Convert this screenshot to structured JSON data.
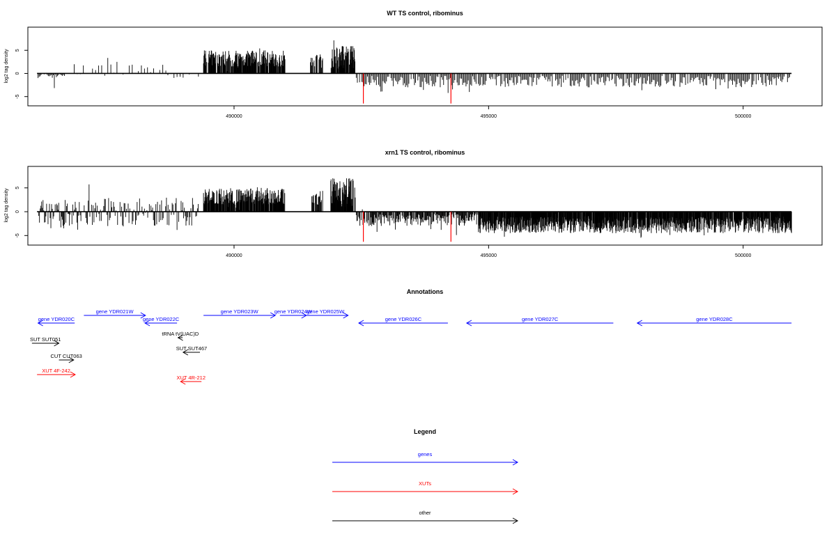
{
  "panels": [
    {
      "title": "WT TS control, ribominus",
      "ylabel": "log2 tag density",
      "yticks": [
        -5,
        0,
        5
      ],
      "xticks": [
        490000,
        495000,
        500000
      ],
      "xlim": [
        485950,
        501550
      ],
      "ylim": [
        -7.0,
        10.0
      ],
      "red_lines": [
        {
          "x": 492540,
          "y": -6.5
        },
        {
          "x": 494260,
          "y": -6.5
        }
      ],
      "regions": [
        {
          "x0": 486150,
          "x1": 486700,
          "lo": -1.0,
          "hi": 0.2,
          "every": 20,
          "dmin": -5.0,
          "dmax": 0
        },
        {
          "x0": 486800,
          "x1": 488700,
          "lo": -0.5,
          "hi": 2.0,
          "every": 60,
          "dmin": -2.5,
          "dmax": 4.0
        },
        {
          "x0": 488700,
          "x1": 489300,
          "lo": -1.0,
          "hi": 0.2,
          "every": 60,
          "dmin": -2.5,
          "dmax": 0.5
        },
        {
          "x0": 489400,
          "x1": 491000,
          "lo": 1.5,
          "hi": 5.0,
          "every": 8,
          "dmin": 0,
          "dmax": 5.5
        },
        {
          "x0": 491500,
          "x1": 491750,
          "lo": 1.0,
          "hi": 4.5,
          "every": 12,
          "dmin": 0,
          "dmax": 5.0
        },
        {
          "x0": 491900,
          "x1": 492380,
          "lo": 1.0,
          "hi": 6.0,
          "every": 6,
          "dmin": 0,
          "dmax": 8.0
        },
        {
          "x0": 492400,
          "x1": 500950,
          "lo": -3.0,
          "hi": -0.5,
          "every": 22,
          "dmin": -4.5,
          "dmax": 0
        }
      ]
    },
    {
      "title": "xrn1 TS control, ribominus",
      "ylabel": "log2 tag density",
      "yticks": [
        -5,
        0,
        5
      ],
      "xticks": [
        490000,
        495000,
        500000
      ],
      "xlim": [
        485950,
        501550
      ],
      "ylim": [
        -7.0,
        9.5
      ],
      "red_lines": [
        {
          "x": 492540,
          "y": -6.3
        },
        {
          "x": 494260,
          "y": -6.3
        }
      ],
      "regions": [
        {
          "x0": 486150,
          "x1": 486800,
          "lo": -3.5,
          "hi": 2.5,
          "every": 14,
          "dmin": -5.5,
          "dmax": 2.5
        },
        {
          "x0": 486800,
          "x1": 489300,
          "lo": -3.0,
          "hi": 3.0,
          "every": 16,
          "dmin": -4.5,
          "dmax": 6.5
        },
        {
          "x0": 489400,
          "x1": 491000,
          "lo": 1.5,
          "hi": 5.0,
          "every": 7,
          "dmin": 0,
          "dmax": 5.5
        },
        {
          "x0": 491500,
          "x1": 491750,
          "lo": 1.0,
          "hi": 4.5,
          "every": 12,
          "dmin": 0,
          "dmax": 5.0
        },
        {
          "x0": 491900,
          "x1": 492380,
          "lo": 1.0,
          "hi": 7.0,
          "every": 5,
          "dmin": 0,
          "dmax": 9.0
        },
        {
          "x0": 492400,
          "x1": 494800,
          "lo": -3.0,
          "hi": -0.5,
          "every": 12,
          "dmin": -5.0,
          "dmax": 0.5
        },
        {
          "x0": 494800,
          "x1": 500950,
          "lo": -4.5,
          "hi": -1.0,
          "every": 6,
          "dmin": -5.5,
          "dmax": 0
        }
      ]
    }
  ],
  "annotations": {
    "title": "Annotations",
    "xlim": [
      485950,
      501550
    ],
    "items": [
      {
        "label": "gene YDR020C",
        "kind": "gene",
        "color": "#0000ff",
        "start": 486150,
        "end": 486870,
        "dir": "left",
        "row": 1
      },
      {
        "label": "gene YDR021W",
        "kind": "gene",
        "color": "#0000ff",
        "start": 487050,
        "end": 488260,
        "dir": "right",
        "row": 0
      },
      {
        "label": "gene YDR022C",
        "kind": "gene",
        "color": "#0000ff",
        "start": 488250,
        "end": 488880,
        "dir": "left",
        "row": 1
      },
      {
        "label": "gene YDR023W",
        "kind": "gene",
        "color": "#0000ff",
        "start": 489400,
        "end": 490810,
        "dir": "right",
        "row": 0
      },
      {
        "label": "gene YDR024W",
        "kind": "gene",
        "color": "#0000ff",
        "start": 490900,
        "end": 491420,
        "dir": "right",
        "row": 0
      },
      {
        "label": "gene YDR025W",
        "kind": "gene",
        "color": "#0000ff",
        "start": 491350,
        "end": 492240,
        "dir": "right",
        "row": 0
      },
      {
        "label": "gene YDR026C",
        "kind": "gene",
        "color": "#0000ff",
        "start": 492450,
        "end": 494200,
        "dir": "left",
        "row": 1
      },
      {
        "label": "gene YDR027C",
        "kind": "gene",
        "color": "#0000ff",
        "start": 494570,
        "end": 497450,
        "dir": "left",
        "row": 1
      },
      {
        "label": "gene YDR028C",
        "kind": "gene",
        "color": "#0000ff",
        "start": 497920,
        "end": 500950,
        "dir": "left",
        "row": 1
      },
      {
        "label": "tRNA tV(UAC)D",
        "kind": "other",
        "color": "#000000",
        "start": 488900,
        "end": 488990,
        "dir": "left",
        "row": 2
      },
      {
        "label": "SUT SUT051",
        "kind": "other",
        "color": "#000000",
        "start": 486030,
        "end": 486560,
        "dir": "right",
        "row": 3
      },
      {
        "label": "SUT SUT467",
        "kind": "other",
        "color": "#000000",
        "start": 489000,
        "end": 489330,
        "dir": "left",
        "row": 4
      },
      {
        "label": "CUT CUT063",
        "kind": "other",
        "color": "#000000",
        "start": 486560,
        "end": 486850,
        "dir": "right",
        "row": 5
      },
      {
        "label": "XUT 4F-242",
        "kind": "xut",
        "color": "#ff0000",
        "start": 486130,
        "end": 486880,
        "dir": "right",
        "row": 6
      },
      {
        "label": "XUT 4R-212",
        "kind": "xut",
        "color": "#ff0000",
        "start": 488950,
        "end": 489360,
        "dir": "left",
        "row": 7
      }
    ]
  },
  "legend": {
    "title": "Legend",
    "items": [
      {
        "label": "genes",
        "color": "#0000ff"
      },
      {
        "label": "XUTs",
        "color": "#ff0000"
      },
      {
        "label": "other",
        "color": "#000000"
      }
    ]
  }
}
